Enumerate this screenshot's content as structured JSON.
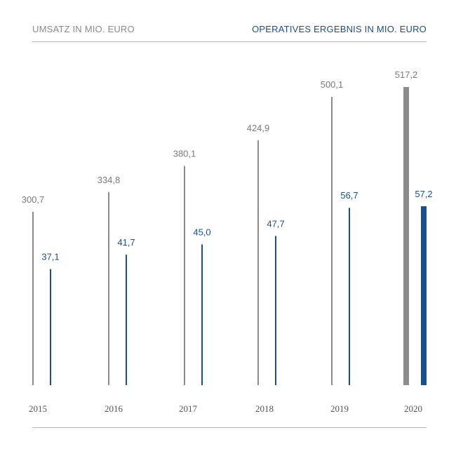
{
  "chart_data": {
    "type": "bar",
    "title_left": "UMSATZ IN MIO. EURO",
    "title_right": "OPERATIVES ERGEBNIS IN MIO. EURO",
    "categories": [
      "2015",
      "2016",
      "2017",
      "2018",
      "2019",
      "2020"
    ],
    "series": [
      {
        "name": "Umsatz in Mio. Euro",
        "color": "#8c8c8c",
        "values": [
          300.7,
          334.8,
          380.1,
          424.9,
          500.1,
          517.2
        ],
        "labels": [
          "300,7",
          "334,8",
          "380,1",
          "424,9",
          "500,1",
          "517,2"
        ]
      },
      {
        "name": "Operatives Ergebnis in Mio. Euro",
        "color": "#1a4f8f",
        "values": [
          37.1,
          41.7,
          45.0,
          47.7,
          56.7,
          57.2
        ],
        "labels": [
          "37,1",
          "41,7",
          "45,0",
          "47,7",
          "56,7",
          "57,2"
        ]
      }
    ],
    "highlight_category": "2020"
  },
  "colors": {
    "grey": "#8c8c8c",
    "grey_text": "#7a7a7a",
    "blue": "#1a4f8f"
  }
}
